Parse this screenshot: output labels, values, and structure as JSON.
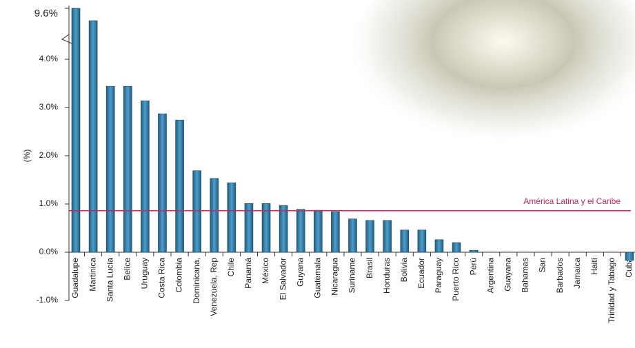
{
  "chart_data": {
    "type": "bar",
    "y_axis_label": "(%)",
    "color": "#3f86b3",
    "categories": [
      "Guadalupe",
      "Martinica",
      "Santa Lucía",
      "Belice",
      "Uruguay",
      "Costa Rica",
      "Colombia",
      "Dominicana,",
      "Venezuela, Rep",
      "Chile",
      "Panamá",
      "México",
      "El Salvador",
      "Guyana",
      "Guatemala",
      "Nicaragua",
      "Suriname",
      "Brasil",
      "Honduras",
      "Bolivia",
      "Ecuador",
      "Paraguay",
      "Puerto Rico",
      "Perú",
      "Argentina",
      "Guayana",
      "Bahamas",
      "San",
      "Barbados",
      "Jamaica",
      "Haití",
      "Trinidad y Tabago",
      "Cuba"
    ],
    "values": [
      9.6,
      4.8,
      3.44,
      3.44,
      3.14,
      2.87,
      2.74,
      1.69,
      1.53,
      1.44,
      1.01,
      1.01,
      0.97,
      0.89,
      0.87,
      0.84,
      0.69,
      0.66,
      0.66,
      0.46,
      0.46,
      0.26,
      0.2,
      0.04,
      0,
      0,
      0,
      0,
      0,
      0,
      0,
      0,
      -0.17
    ],
    "ylim": [
      -1,
      9.6
    ],
    "yticks": [
      {
        "value": -1,
        "label": "-1.0%"
      },
      {
        "value": 0,
        "label": "0.0%"
      },
      {
        "value": 1,
        "label": "1.0%"
      },
      {
        "value": 2,
        "label": "2.0%"
      },
      {
        "value": 3,
        "label": "3.0%"
      },
      {
        "value": 4,
        "label": "4.0%"
      },
      {
        "value": 9.6,
        "label": "9.6%"
      }
    ],
    "axis_break": true,
    "reference_line": {
      "label": "América Latina y el Caribe",
      "value": 0.86,
      "color": "#c8265a"
    }
  }
}
